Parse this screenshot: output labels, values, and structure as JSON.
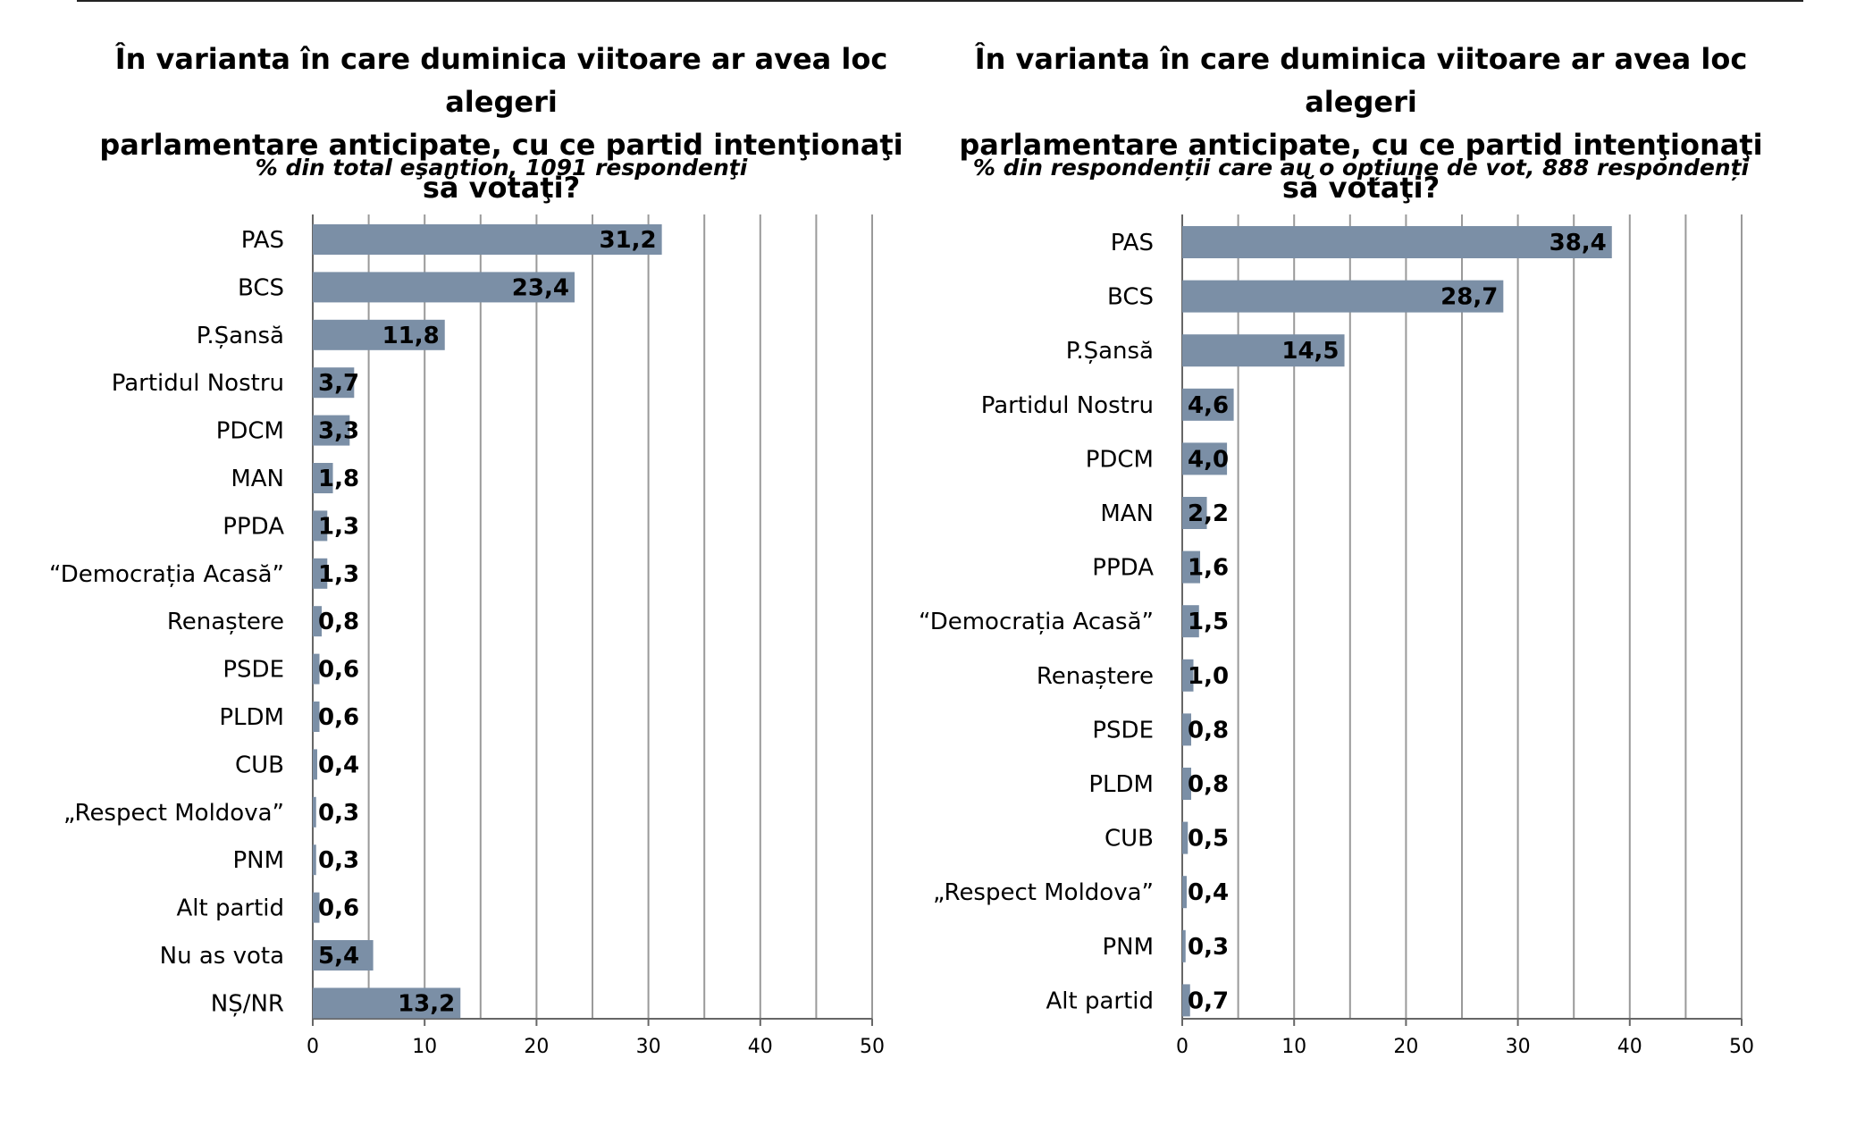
{
  "chart_data": [
    {
      "type": "bar",
      "orientation": "horizontal",
      "title": [
        "În varianta în care duminica viitoare ar avea loc alegeri",
        "parlamentare anticipate, cu ce partid intenţionaţi să votaţi?"
      ],
      "subtitle": "% din total eşantion, 1091 respondenţi",
      "categories": [
        "PAS",
        "BCS",
        "P.Șansă",
        "Partidul Nostru",
        "PDCM",
        "MAN",
        "PPDA",
        "“Democrația Acasă”",
        "Renaștere",
        "PSDE",
        "PLDM",
        "CUB",
        "„Respect Moldova”",
        "PNM",
        "Alt partid",
        "Nu as vota",
        "NȘ/NR"
      ],
      "values": [
        31.2,
        23.4,
        11.8,
        3.7,
        3.3,
        1.8,
        1.3,
        1.3,
        0.8,
        0.6,
        0.6,
        0.4,
        0.3,
        0.3,
        0.6,
        5.4,
        13.2
      ],
      "value_labels": [
        "31,2",
        "23,4",
        "11,8",
        "3,7",
        "3,3",
        "1,8",
        "1,3",
        "1,3",
        "0,8",
        "0,6",
        "0,6",
        "0,4",
        "0,3",
        "0,3",
        "0,6",
        "5,4",
        "13,2"
      ],
      "xlim": [
        0,
        50
      ],
      "xticks": [
        0,
        10,
        20,
        30,
        40,
        50
      ],
      "gridlines": [
        5,
        10,
        15,
        20,
        25,
        30,
        35,
        40,
        45,
        50
      ],
      "grid": true,
      "bar_color": "#7b8fa6"
    },
    {
      "type": "bar",
      "orientation": "horizontal",
      "title": [
        "În varianta în care duminica viitoare ar avea loc alegeri",
        "parlamentare anticipate, cu ce partid intenţionaţi să votaţi?"
      ],
      "subtitle": "% din respondenții care au o opțiune de vot, 888 respondenți",
      "categories": [
        "PAS",
        "BCS",
        "P.Șansă",
        "Partidul Nostru",
        "PDCM",
        "MAN",
        "PPDA",
        "“Democrația Acasă”",
        "Renaștere",
        "PSDE",
        "PLDM",
        "CUB",
        "„Respect Moldova”",
        "PNM",
        "Alt partid"
      ],
      "values": [
        38.4,
        28.7,
        14.5,
        4.6,
        4.0,
        2.2,
        1.6,
        1.5,
        1.0,
        0.8,
        0.8,
        0.5,
        0.4,
        0.3,
        0.7
      ],
      "value_labels": [
        "38,4",
        "28,7",
        "14,5",
        "4,6",
        "4,0",
        "2,2",
        "1,6",
        "1,5",
        "1,0",
        "0,8",
        "0,8",
        "0,5",
        "0,4",
        "0,3",
        "0,7"
      ],
      "xlim": [
        0,
        50
      ],
      "xticks": [
        0,
        10,
        20,
        30,
        40,
        50
      ],
      "gridlines": [
        5,
        10,
        15,
        20,
        25,
        30,
        35,
        40,
        45,
        50
      ],
      "grid": true,
      "bar_color": "#7b8fa6"
    }
  ]
}
